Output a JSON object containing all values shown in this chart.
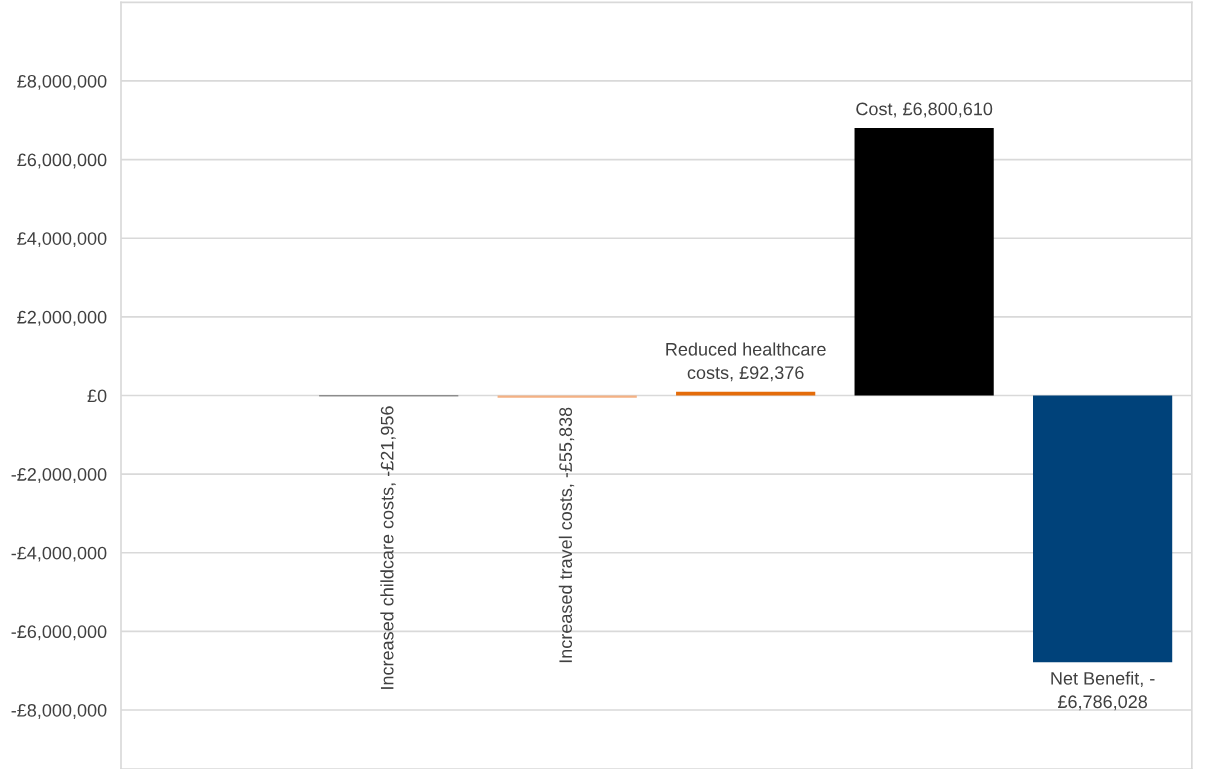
{
  "chart_data": {
    "type": "bar",
    "categories": [
      null,
      null,
      null,
      null,
      null,
      null
    ],
    "values": [
      null,
      -21956,
      -55838,
      92376,
      6800610,
      -6786028
    ],
    "colors": [
      "#404040",
      "#404040",
      "#f4b183",
      "#e46c0a",
      "#000000",
      "#00427a"
    ],
    "value_labels": [
      null,
      "Increased childcare costs, -£21,956",
      "Increased travel costs, -£55,838",
      "Reduced healthcare\ncosts, £92,376",
      "Cost, £6,800,610",
      "Net Benefit, -\n£6,786,028"
    ],
    "ylim": [
      -9500000,
      10000000
    ],
    "yticks": [
      {
        "value": -8000000,
        "label": "-£8,000,000"
      },
      {
        "value": -6000000,
        "label": "-£6,000,000"
      },
      {
        "value": -4000000,
        "label": "-£4,000,000"
      },
      {
        "value": -2000000,
        "label": "-£2,000,000"
      },
      {
        "value": 0,
        "label": "£0"
      },
      {
        "value": 2000000,
        "label": "£2,000,000"
      },
      {
        "value": 4000000,
        "label": "£4,000,000"
      },
      {
        "value": 6000000,
        "label": "£6,000,000"
      },
      {
        "value": 8000000,
        "label": "£8,000,000"
      }
    ],
    "grid": "y",
    "legend": false
  }
}
